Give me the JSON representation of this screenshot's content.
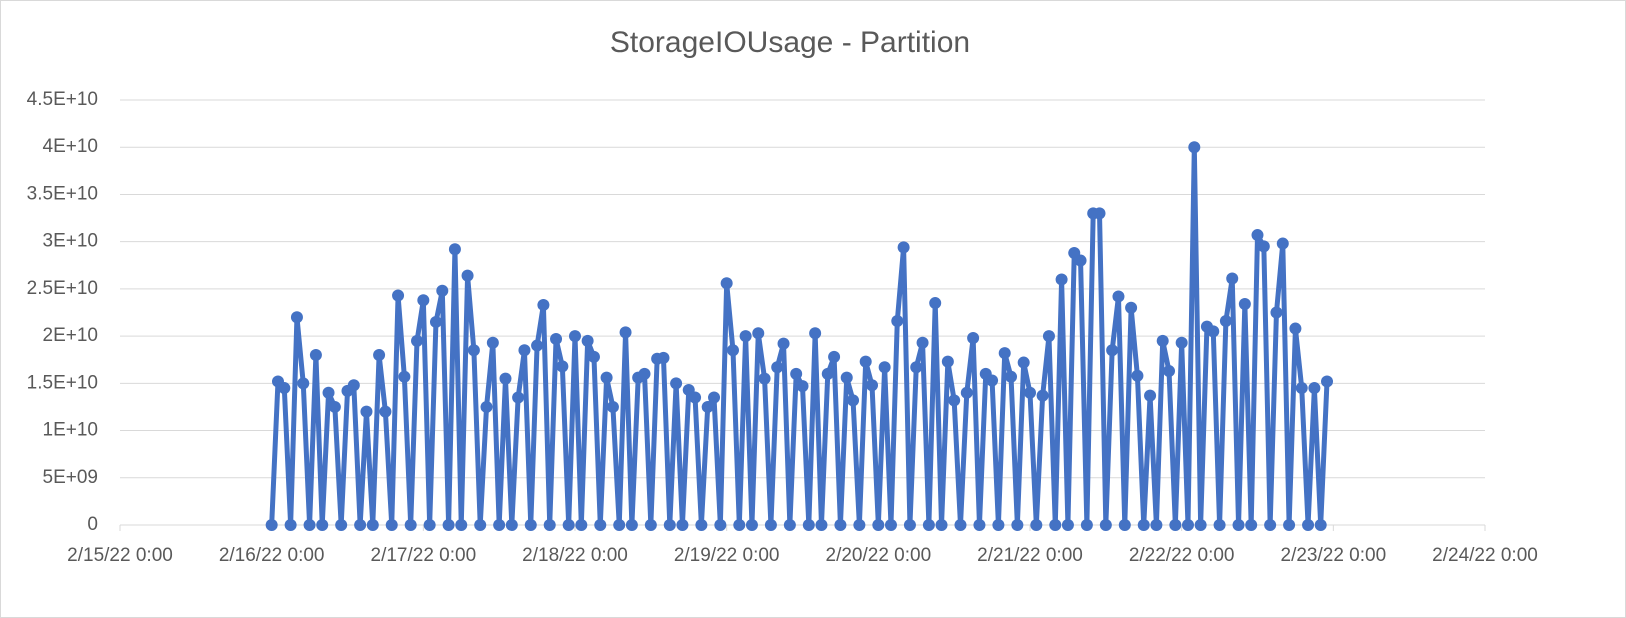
{
  "chart_data": {
    "type": "line",
    "title": "StorageIOUsage - Partition",
    "x": [
      "2/16/22 0:00",
      "2/16/22 1:00",
      "2/16/22 2:00",
      "2/16/22 3:00",
      "2/16/22 4:00",
      "2/16/22 5:00",
      "2/16/22 6:00",
      "2/16/22 7:00",
      "2/16/22 8:00",
      "2/16/22 9:00",
      "2/16/22 10:00",
      "2/16/22 11:00",
      "2/16/22 12:00",
      "2/16/22 13:00",
      "2/16/22 14:00",
      "2/16/22 15:00",
      "2/16/22 16:00",
      "2/16/22 17:00",
      "2/16/22 18:00",
      "2/16/22 19:00",
      "2/16/22 20:00",
      "2/16/22 21:00",
      "2/16/22 22:00",
      "2/16/22 23:00",
      "2/17/22 0:00",
      "2/17/22 1:00",
      "2/17/22 2:00",
      "2/17/22 3:00",
      "2/17/22 4:00",
      "2/17/22 5:00",
      "2/17/22 6:00",
      "2/17/22 7:00",
      "2/17/22 8:00",
      "2/17/22 9:00",
      "2/17/22 10:00",
      "2/17/22 11:00",
      "2/17/22 12:00",
      "2/17/22 13:00",
      "2/17/22 14:00",
      "2/17/22 15:00",
      "2/17/22 16:00",
      "2/17/22 17:00",
      "2/17/22 18:00",
      "2/17/22 19:00",
      "2/17/22 20:00",
      "2/17/22 21:00",
      "2/17/22 22:00",
      "2/17/22 23:00",
      "2/18/22 0:00",
      "2/18/22 1:00",
      "2/18/22 2:00",
      "2/18/22 3:00",
      "2/18/22 4:00",
      "2/18/22 5:00",
      "2/18/22 6:00",
      "2/18/22 7:00",
      "2/18/22 8:00",
      "2/18/22 9:00",
      "2/18/22 10:00",
      "2/18/22 11:00",
      "2/18/22 12:00",
      "2/18/22 13:00",
      "2/18/22 14:00",
      "2/18/22 15:00",
      "2/18/22 16:00",
      "2/18/22 17:00",
      "2/18/22 18:00",
      "2/18/22 19:00",
      "2/18/22 20:00",
      "2/18/22 21:00",
      "2/18/22 22:00",
      "2/18/22 23:00",
      "2/19/22 0:00",
      "2/19/22 1:00",
      "2/19/22 2:00",
      "2/19/22 3:00",
      "2/19/22 4:00",
      "2/19/22 5:00",
      "2/19/22 6:00",
      "2/19/22 7:00",
      "2/19/22 8:00",
      "2/19/22 9:00",
      "2/19/22 10:00",
      "2/19/22 11:00",
      "2/19/22 12:00",
      "2/19/22 13:00",
      "2/19/22 14:00",
      "2/19/22 15:00",
      "2/19/22 16:00",
      "2/19/22 17:00",
      "2/19/22 18:00",
      "2/19/22 19:00",
      "2/19/22 20:00",
      "2/19/22 21:00",
      "2/19/22 22:00",
      "2/19/22 23:00",
      "2/20/22 0:00",
      "2/20/22 1:00",
      "2/20/22 2:00",
      "2/20/22 3:00",
      "2/20/22 4:00",
      "2/20/22 5:00",
      "2/20/22 6:00",
      "2/20/22 7:00",
      "2/20/22 8:00",
      "2/20/22 9:00",
      "2/20/22 10:00",
      "2/20/22 11:00",
      "2/20/22 12:00",
      "2/20/22 13:00",
      "2/20/22 14:00",
      "2/20/22 15:00",
      "2/20/22 16:00",
      "2/20/22 17:00",
      "2/20/22 18:00",
      "2/20/22 19:00",
      "2/20/22 20:00",
      "2/20/22 21:00",
      "2/20/22 22:00",
      "2/20/22 23:00",
      "2/21/22 0:00",
      "2/21/22 1:00",
      "2/21/22 2:00",
      "2/21/22 3:00",
      "2/21/22 4:00",
      "2/21/22 5:00",
      "2/21/22 6:00",
      "2/21/22 7:00",
      "2/21/22 8:00",
      "2/21/22 9:00",
      "2/21/22 10:00",
      "2/21/22 11:00",
      "2/21/22 12:00",
      "2/21/22 13:00",
      "2/21/22 14:00",
      "2/21/22 15:00",
      "2/21/22 16:00",
      "2/21/22 17:00",
      "2/21/22 18:00",
      "2/21/22 19:00",
      "2/21/22 20:00",
      "2/21/22 21:00",
      "2/21/22 22:00",
      "2/21/22 23:00",
      "2/22/22 0:00",
      "2/22/22 1:00",
      "2/22/22 2:00",
      "2/22/22 3:00",
      "2/22/22 4:00",
      "2/22/22 5:00",
      "2/22/22 6:00",
      "2/22/22 7:00",
      "2/22/22 8:00",
      "2/22/22 9:00",
      "2/22/22 10:00",
      "2/22/22 11:00",
      "2/22/22 12:00",
      "2/22/22 13:00",
      "2/22/22 14:00",
      "2/22/22 15:00",
      "2/22/22 16:00",
      "2/22/22 17:00",
      "2/22/22 18:00",
      "2/22/22 19:00",
      "2/22/22 20:00",
      "2/22/22 21:00",
      "2/22/22 22:00",
      "2/22/22 23:00"
    ],
    "series": [
      {
        "color": "#4472c4",
        "values": [
          0,
          15200000000.0,
          14500000000.0,
          0,
          22000000000.0,
          15000000000.0,
          0,
          18000000000.0,
          0,
          14000000000.0,
          12500000000.0,
          0,
          14200000000.0,
          14800000000.0,
          0,
          12000000000.0,
          0,
          18000000000.0,
          12000000000.0,
          0,
          24300000000.0,
          15700000000.0,
          0,
          19500000000.0,
          23800000000.0,
          0,
          21500000000.0,
          24800000000.0,
          0,
          29200000000.0,
          0,
          26400000000.0,
          18500000000.0,
          0,
          12500000000.0,
          19300000000.0,
          0,
          15500000000.0,
          0,
          13500000000.0,
          18500000000.0,
          0,
          19000000000.0,
          23300000000.0,
          0,
          19700000000.0,
          16800000000.0,
          0,
          20000000000.0,
          0,
          19500000000.0,
          17800000000.0,
          0,
          15600000000.0,
          12500000000.0,
          0,
          20400000000.0,
          0,
          15600000000.0,
          16000000000.0,
          0,
          17600000000.0,
          17700000000.0,
          0,
          15000000000.0,
          0,
          14300000000.0,
          13500000000.0,
          0,
          12500000000.0,
          13500000000.0,
          0,
          25600000000.0,
          18500000000.0,
          0,
          20000000000.0,
          0,
          20300000000.0,
          15500000000.0,
          0,
          16700000000.0,
          19200000000.0,
          0,
          16000000000.0,
          14700000000.0,
          0,
          20300000000.0,
          0,
          16000000000.0,
          17800000000.0,
          0,
          15600000000.0,
          13200000000.0,
          0,
          17300000000.0,
          14800000000.0,
          0,
          16700000000.0,
          0,
          21600000000.0,
          29400000000.0,
          0,
          16700000000.0,
          19300000000.0,
          0,
          23500000000.0,
          0,
          17300000000.0,
          13200000000.0,
          0,
          14000000000.0,
          19800000000.0,
          0,
          16000000000.0,
          15300000000.0,
          0,
          18200000000.0,
          15700000000.0,
          0,
          17200000000.0,
          14000000000.0,
          0,
          13700000000.0,
          20000000000.0,
          0,
          26000000000.0,
          0,
          28800000000.0,
          28000000000.0,
          0,
          33000000000.0,
          33000000000.0,
          0,
          18500000000.0,
          24200000000.0,
          0,
          23000000000.0,
          15800000000.0,
          0,
          13700000000.0,
          0,
          19500000000.0,
          16300000000.0,
          0,
          19300000000.0,
          0,
          40000000000.0,
          0,
          21000000000.0,
          20500000000.0,
          0,
          21600000000.0,
          26100000000.0,
          0,
          23400000000.0,
          0,
          30700000000.0,
          29500000000.0,
          0,
          22500000000.0,
          29800000000.0,
          0,
          20800000000.0,
          14500000000.0,
          0,
          14500000000.0,
          0,
          15200000000.0
        ]
      }
    ],
    "xlim": [
      "2/15/22 0:00",
      "2/24/22 0:00"
    ],
    "xticks": [
      "2/15/22 0:00",
      "2/16/22 0:00",
      "2/17/22 0:00",
      "2/18/22 0:00",
      "2/19/22 0:00",
      "2/20/22 0:00",
      "2/21/22 0:00",
      "2/22/22 0:00",
      "2/23/22 0:00",
      "2/24/22 0:00"
    ],
    "ylim": [
      0,
      45000000000.0
    ],
    "yticks": [
      0,
      {
        "value": 5000000000.0,
        "label": "5E+09"
      },
      {
        "value": 10000000000.0,
        "label": "1E+10"
      },
      {
        "value": 15000000000.0,
        "label": "1.5E+10"
      },
      {
        "value": 20000000000.0,
        "label": "2E+10"
      },
      {
        "value": 25000000000.0,
        "label": "2.5E+10"
      },
      {
        "value": 30000000000.0,
        "label": "3E+10"
      },
      {
        "value": 35000000000.0,
        "label": "3.5E+10"
      },
      {
        "value": 40000000000.0,
        "label": "4E+10"
      },
      {
        "value": 45000000000.0,
        "label": "4.5E+10"
      }
    ],
    "grid": true
  }
}
